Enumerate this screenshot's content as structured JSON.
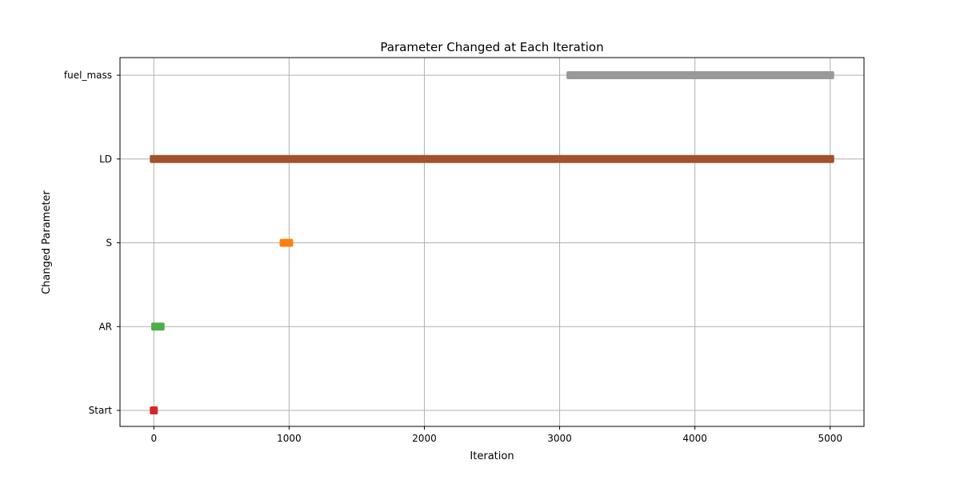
{
  "chart_data": {
    "type": "scatter",
    "title": "Parameter Changed at Each Iteration",
    "xlabel": "Iteration",
    "ylabel": "Changed Parameter",
    "xlim": [
      -250,
      5250
    ],
    "xticks": [
      0,
      1000,
      2000,
      3000,
      4000,
      5000
    ],
    "categories": [
      "Start",
      "AR",
      "S",
      "LD",
      "fuel_mass"
    ],
    "grid": true,
    "legend": "none",
    "series": [
      {
        "category": "Start",
        "color": "#d62728",
        "ranges": [
          [
            0,
            0
          ]
        ]
      },
      {
        "category": "AR",
        "color": "#4daf4a",
        "ranges": [
          [
            10,
            50
          ]
        ]
      },
      {
        "category": "S",
        "color": "#ff7f0e",
        "ranges": [
          [
            960,
            1000
          ]
        ]
      },
      {
        "category": "LD",
        "color": "#a0522d",
        "ranges": [
          [
            0,
            5000
          ]
        ]
      },
      {
        "category": "fuel_mass",
        "color": "#999999",
        "ranges": [
          [
            3080,
            5000
          ]
        ]
      }
    ]
  }
}
